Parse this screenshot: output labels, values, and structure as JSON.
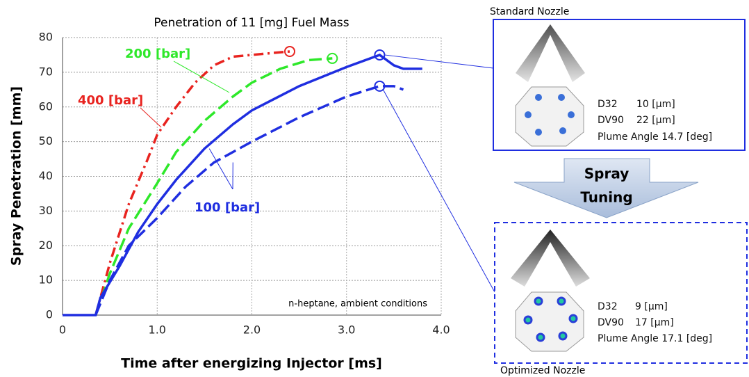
{
  "chart_data": {
    "type": "line",
    "title": "Penetration of 11 [mg]  Fuel Mass",
    "x_label": "Time after energizing Injector [ms]",
    "y_label": "Spray Penetration [mm]",
    "note": "n-heptane, ambient conditions",
    "xlim": [
      0,
      4.0
    ],
    "ylim": [
      0,
      80
    ],
    "xticks": [
      0,
      {
        "value": 1,
        "label": "1.0"
      },
      {
        "value": 2,
        "label": "2.0"
      },
      {
        "value": 3,
        "label": "3.0"
      },
      {
        "value": 4,
        "label": "4.0"
      }
    ],
    "yticks": [
      0,
      10,
      20,
      30,
      40,
      50,
      60,
      70,
      80
    ],
    "grid": true,
    "series": [
      {
        "name": "400 [bar]",
        "color": "#e8231f",
        "line_style": "dashdot",
        "x": [
          0.35,
          0.4,
          0.5,
          0.7,
          0.9,
          1.0,
          1.2,
          1.4,
          1.6,
          1.8,
          2.0,
          2.2,
          2.4
        ],
        "values": [
          0,
          5,
          15,
          32,
          45,
          52,
          60,
          67,
          72,
          74.5,
          75,
          75.5,
          76
        ]
      },
      {
        "name": "200 [bar]",
        "color": "#2ee82a",
        "line_style": "dashed",
        "x": [
          0.35,
          0.5,
          0.7,
          1.0,
          1.2,
          1.5,
          1.8,
          2.0,
          2.3,
          2.6,
          2.85
        ],
        "values": [
          0,
          12,
          25,
          38,
          47,
          56,
          63,
          67,
          71,
          73.5,
          74
        ]
      },
      {
        "name": "100 [bar]",
        "color": "#1f2ee0",
        "line_style": "solid",
        "x": [
          0,
          0.35,
          0.4,
          0.6,
          0.8,
          1.0,
          1.2,
          1.5,
          1.8,
          2.0,
          2.5,
          3.0,
          3.35,
          3.5,
          3.6,
          3.8
        ],
        "values": [
          0,
          0,
          5,
          14,
          24,
          32,
          39,
          48,
          55,
          59,
          66,
          71.5,
          75,
          72,
          71,
          71
        ]
      },
      {
        "color": "#1f2ee0",
        "line_style": "dashed",
        "x": [
          0.35,
          0.5,
          0.7,
          1.0,
          1.3,
          1.6,
          2.0,
          2.5,
          3.0,
          3.35,
          3.5,
          3.6
        ],
        "values": [
          0,
          10,
          20,
          28,
          37,
          44,
          50,
          57,
          63,
          66,
          66,
          65
        ]
      }
    ]
  },
  "panels": [
    {
      "title": "Standard Nozzle",
      "rows": [
        [
          "D32",
          "10 [µm]"
        ],
        [
          "DV90",
          "22 [µm]"
        ]
      ],
      "plume": "Plume Angle 14.7 [deg]"
    },
    {
      "title": "Optimized Nozzle",
      "rows": [
        [
          "D32",
          "9 [µm]"
        ],
        [
          "DV90",
          "17 [µm]"
        ]
      ],
      "plume": "Plume Angle 17.1 [deg]"
    }
  ],
  "arrow_label": [
    "Spray",
    "Tuning"
  ]
}
